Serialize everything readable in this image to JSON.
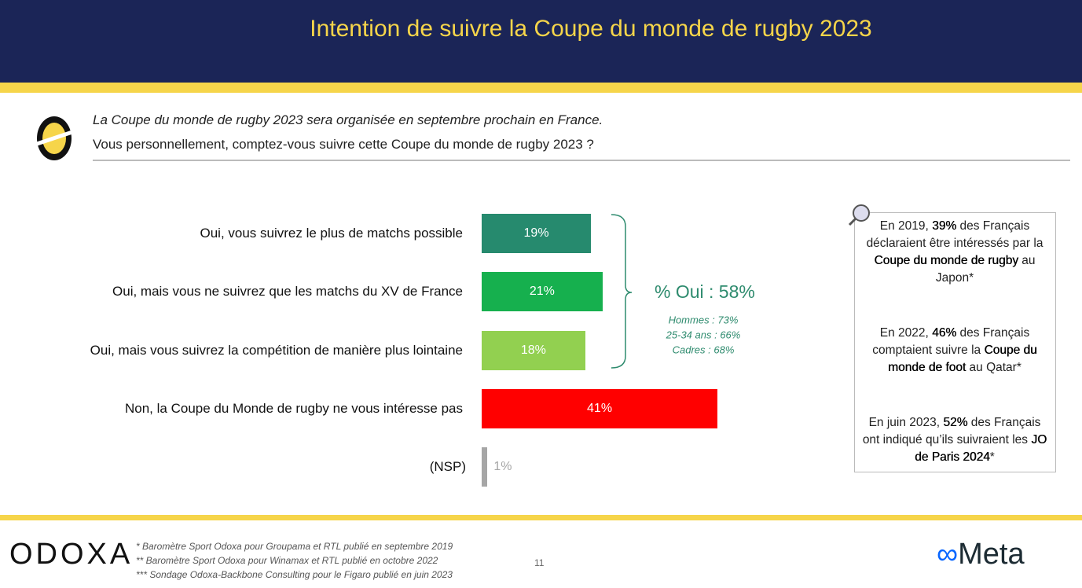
{
  "chart_data": {
    "type": "bar",
    "title": "Intention de suivre la Coupe du monde de rugby 2023",
    "categories": [
      "Oui, vous suivrez le plus de matchs possible",
      "Oui, mais vous ne suivrez que les matchs du XV de France",
      "Oui, mais vous suivrez la compétition de manière plus lointaine",
      "Non, la Coupe du Monde de rugby ne vous intéresse pas",
      "(NSP)"
    ],
    "values": [
      19,
      21,
      18,
      41,
      1
    ],
    "value_labels": [
      "19%",
      "21%",
      "18%",
      "41%",
      "1%"
    ],
    "colors": [
      "#268a6e",
      "#16b04e",
      "#92d050",
      "#ff0000",
      "#a6a6a6"
    ],
    "group_total": "% Oui : 58%",
    "group_details": [
      "Hommes : 73%",
      "25-34 ans : 66%",
      "Cadres : 68%"
    ]
  },
  "question": {
    "context": "La Coupe du monde de rugby 2023 sera organisée en septembre prochain en France.",
    "text": "Vous personnellement, comptez-vous suivre cette Coupe du monde de rugby 2023 ?"
  },
  "side_notes": [
    [
      "En 2019, ",
      "39%",
      " des Français déclaraient être intéressés par la ",
      "Coupe du monde de rugby",
      " au Japon*"
    ],
    [
      "En 2022, ",
      "46%",
      " des Français comptaient suivre la ",
      "Coupe du monde de foot",
      " au Qatar*"
    ],
    [
      "En juin 2023, ",
      "52%",
      " des Français ont indiqué qu’ils suivraient les ",
      "JO de Paris 2024",
      "*"
    ]
  ],
  "footer": {
    "brand": "ODOXA",
    "partner": "Meta",
    "page": "11",
    "notes": [
      "* Baromètre Sport Odoxa pour Groupama et RTL publié en septembre 2019",
      "** Baromètre Sport Odoxa pour Winamax et RTL publié en octobre 2022",
      "*** Sondage Odoxa-Backbone Consulting pour le Figaro publié en juin 2023"
    ]
  }
}
